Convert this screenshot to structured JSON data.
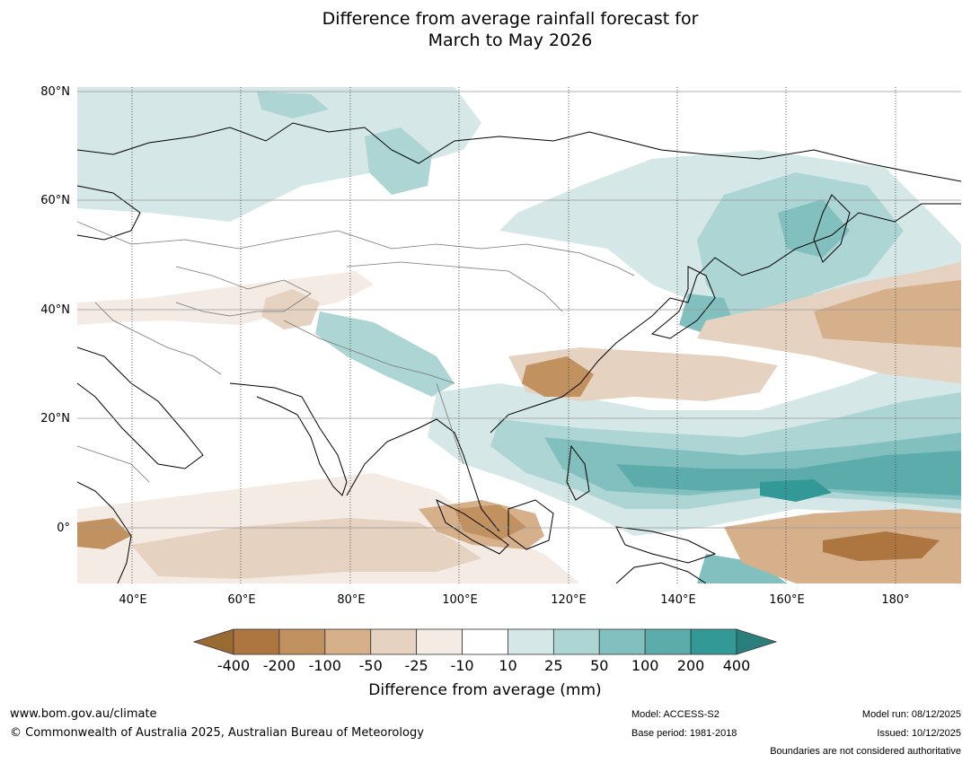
{
  "title": {
    "line1": "Difference from average rainfall forecast for",
    "line2": "March to May 2026"
  },
  "lat_labels": [
    "80°N",
    "60°N",
    "40°N",
    "20°N",
    "0°"
  ],
  "lon_labels": [
    "40°E",
    "60°E",
    "80°E",
    "100°E",
    "120°E",
    "140°E",
    "160°E",
    "180°"
  ],
  "legend": {
    "title": "Difference from average (mm)",
    "ticks": [
      "-400",
      "-200",
      "-100",
      "-50",
      "-25",
      "-10",
      "10",
      "25",
      "50",
      "100",
      "200",
      "400"
    ],
    "colors": [
      "#9a6a33",
      "#ad7540",
      "#c1915f",
      "#d5b08b",
      "#e6d2c0",
      "#f4ebe4",
      "#ffffff",
      "#d5e8e7",
      "#acd5d4",
      "#82c0bf",
      "#5cacab",
      "#339997",
      "#2a7f7d"
    ]
  },
  "palette": {
    "brown_dark": "#ad7540",
    "brown_mid": "#c1915f",
    "brown_light": "#d5b08b",
    "brown_pale": "#e6d2c0",
    "brown_faint": "#f4ebe4",
    "teal_faint": "#d5e8e7",
    "teal_light": "#acd5d4",
    "teal_mid": "#82c0bf",
    "teal_strong": "#5cacab",
    "teal_dark": "#339997"
  },
  "footer": {
    "website": "www.bom.gov.au/climate",
    "copyright": "© Commonwealth of Australia 2025, Australian Bureau of Meteorology",
    "model": "Model: ACCESS-S2",
    "base_period": "Base period: 1981-2018",
    "model_run": "Model run: 08/12/2025",
    "issued": "Issued: 10/12/2025",
    "disclaimer": "Boundaries are not considered authoritative"
  }
}
